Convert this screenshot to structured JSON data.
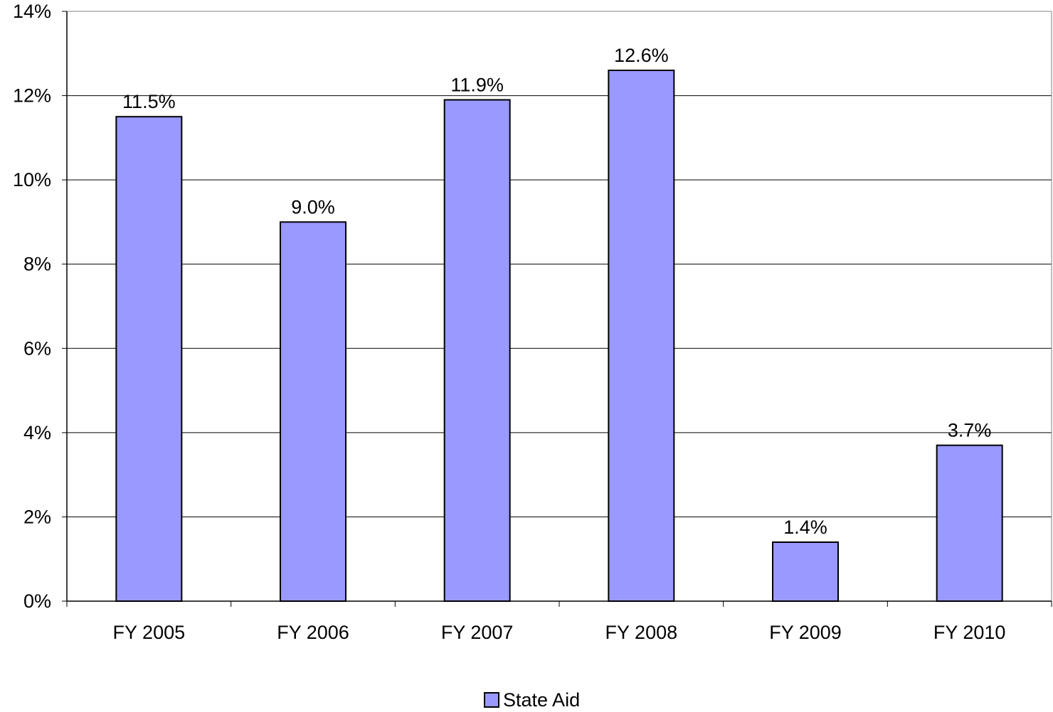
{
  "chart_data": {
    "type": "bar",
    "title": "",
    "xlabel": "",
    "ylabel": "",
    "categories": [
      "FY 2005",
      "FY 2006",
      "FY 2007",
      "FY 2008",
      "FY 2009",
      "FY 2010"
    ],
    "series": [
      {
        "name": "State Aid",
        "values": [
          11.5,
          9.0,
          11.9,
          12.6,
          1.4,
          3.7
        ],
        "data_labels": [
          "11.5%",
          "9.0%",
          "11.9%",
          "12.6%",
          "1.4%",
          "3.7%"
        ],
        "color": "#9999ff"
      }
    ],
    "ylim": [
      0,
      14
    ],
    "y_ticks": [
      0,
      2,
      4,
      6,
      8,
      10,
      12,
      14
    ],
    "y_tick_labels": [
      "0%",
      "2%",
      "4%",
      "6%",
      "8%",
      "10%",
      "12%",
      "14%"
    ],
    "grid": true,
    "legend_position": "bottom-center"
  }
}
